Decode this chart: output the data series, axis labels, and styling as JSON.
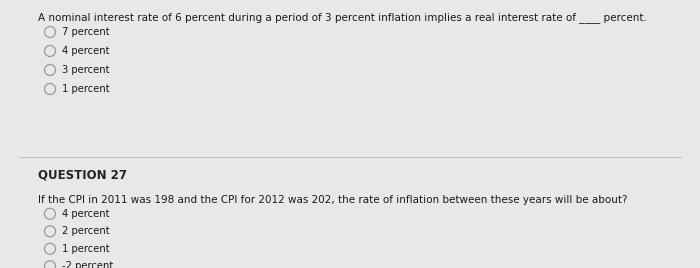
{
  "bg_color": "#e8e8e8",
  "panel_color": "#e0e0e0",
  "q1_text": "A nominal interest rate of 6 percent during a period of 3 percent inflation implies a real interest rate of ____ percent.",
  "q1_options": [
    "7 percent",
    "4 percent",
    "3 percent",
    "1 percent"
  ],
  "q2_label": "QUESTION 27",
  "q2_text": "If the CPI in 2011 was 198 and the CPI for 2012 was 202, the rate of inflation between these years will be about?",
  "q2_options": [
    "4 percent",
    "2 percent",
    "1 percent",
    "-2 percent"
  ],
  "text_color": "#1a1a1a",
  "label_color": "#222222",
  "circle_edge_color": "#999999",
  "font_size_main": 7.5,
  "font_size_option": 7.2,
  "font_size_label": 8.5,
  "fig_width": 7.0,
  "fig_height": 2.68,
  "dpi": 100
}
